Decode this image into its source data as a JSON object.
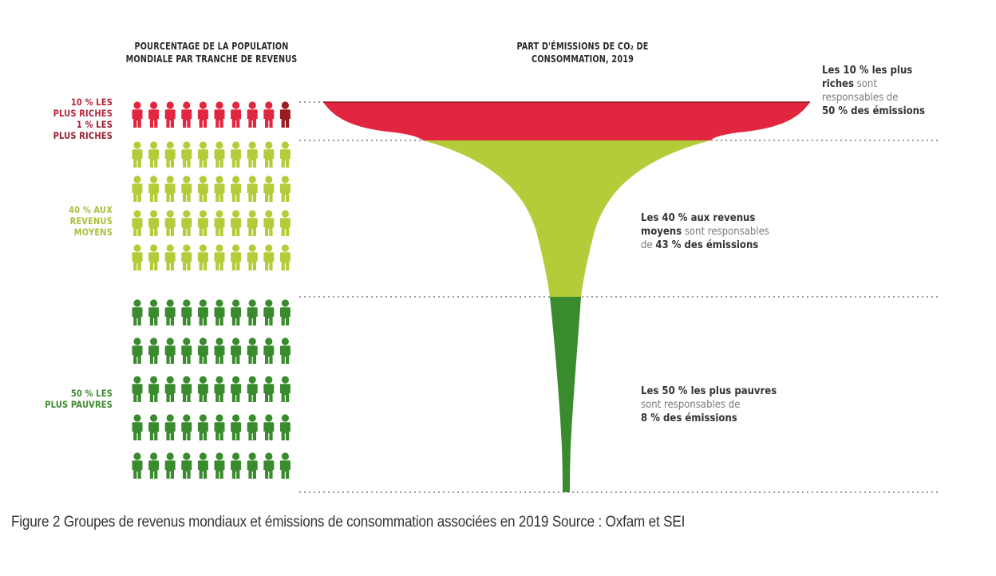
{
  "chart_data": {
    "type": "funnel-pictogram",
    "left_title": "POURCENTAGE DE LA POPULATION MONDIALE PAR TRANCHE DE REVENUS",
    "right_title": "PART D'ÉMISSIONS DE CO₂ DE CONSOMMATION, 2019",
    "categories": [
      "10 % les plus riches",
      "40 % aux revenus moyens",
      "50 % les plus pauvres"
    ],
    "population_share_pct": [
      10,
      40,
      50
    ],
    "emissions_share_pct": [
      50,
      43,
      8
    ],
    "sub_group": {
      "label": "1 % les plus riches",
      "population_share_pct": 1
    },
    "pictogram": {
      "total_figures": 100,
      "figures_per_row": 10,
      "rows": [
        1,
        4,
        5
      ]
    },
    "colors": {
      "richest_10": "#e3263f",
      "richest_1": "#9b1b1f",
      "middle_40": "#b5cc3a",
      "poorest_50": "#3a8a2e"
    }
  },
  "headers": {
    "left_line1": "POURCENTAGE DE LA POPULATION",
    "left_line2": "MONDIALE PAR TRANCHE DE REVENUS",
    "right_line1": "PART D'ÉMISSIONS DE CO₂ DE",
    "right_line2": "CONSOMMATION, 2019"
  },
  "labels": {
    "rich10_line1": "10 % LES",
    "rich10_line2": "PLUS RICHES",
    "rich1_line1": "1 % LES",
    "rich1_line2": "PLUS RICHES",
    "middle_line1": "40 % AUX",
    "middle_line2": "REVENUS",
    "middle_line3": "MOYENS",
    "poor_line1": "50 % LES",
    "poor_line2": "PLUS PAUVRES"
  },
  "annotations": {
    "rich": {
      "b1": "Les 10 % les plus",
      "b2": "riches",
      "t1": " sont",
      "t2": "responsables de",
      "b3": "50 % des émissions"
    },
    "middle": {
      "b1": "Les 40 % aux revenus",
      "b2": "moyens",
      "t1": " sont responsables",
      "t2": "de ",
      "b3": "43 % des émissions"
    },
    "poor": {
      "b1": "Les 50 % les plus pauvres",
      "t1": "sont responsables de",
      "b2": "8 % des émissions"
    }
  },
  "caption": "Figure 2 Groupes de revenus mondiaux et émissions de consommation associées en 2019 Source : Oxfam et SEI"
}
